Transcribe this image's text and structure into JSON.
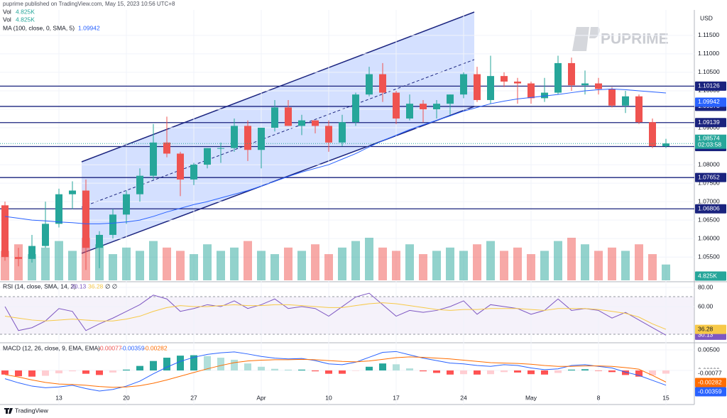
{
  "header": "puprime published on TradingView.com, May 15, 2023 10:56 UTC+8",
  "watermark": "PUPRIME",
  "footer": "TradingView",
  "chart_data": [
    {
      "type": "candlestick",
      "axis_label": "USD",
      "categories": [
        "",
        "",
        "",
        "",
        "13",
        "",
        "",
        "",
        "",
        "20",
        "",
        "",
        "",
        "",
        "27",
        "",
        "",
        "",
        "",
        "Apr",
        "",
        "",
        "",
        "",
        "10",
        "",
        "",
        "",
        "",
        "17",
        "",
        "",
        "",
        "",
        "24",
        "",
        "",
        "",
        "",
        "May",
        "",
        "",
        "",
        "",
        "8",
        "",
        "",
        "",
        "",
        "15"
      ],
      "ohlc": [
        [
          1.069,
          1.07,
          1.054,
          1.055
        ],
        [
          1.055,
          1.0575,
          1.0525,
          1.0545
        ],
        [
          1.0545,
          1.061,
          1.0535,
          1.058
        ],
        [
          1.058,
          1.07,
          1.0575,
          1.064
        ],
        [
          1.064,
          1.0735,
          1.063,
          1.072
        ],
        [
          1.072,
          1.0755,
          1.068,
          1.073
        ],
        [
          1.073,
          1.076,
          1.0515,
          1.0575
        ],
        [
          1.0575,
          1.062,
          1.052,
          1.061
        ],
        [
          1.061,
          1.068,
          1.06,
          1.0665
        ],
        [
          1.0665,
          1.073,
          1.064,
          1.072
        ],
        [
          1.072,
          1.079,
          1.07,
          1.077
        ],
        [
          1.077,
          1.091,
          1.076,
          1.086
        ],
        [
          1.086,
          1.093,
          1.082,
          1.083
        ],
        [
          1.083,
          1.0835,
          1.0715,
          1.076
        ],
        [
          1.076,
          1.0805,
          1.0745,
          1.08
        ],
        [
          1.08,
          1.0845,
          1.079,
          1.0845
        ],
        [
          1.0845,
          1.086,
          1.0805,
          1.0845
        ],
        [
          1.0845,
          1.0925,
          1.0835,
          1.0905
        ],
        [
          1.0905,
          1.092,
          1.081,
          1.084
        ],
        [
          1.084,
          1.09,
          1.079,
          1.09
        ],
        [
          1.09,
          1.0975,
          1.089,
          1.0955
        ],
        [
          1.0955,
          1.0975,
          1.0905,
          1.0905
        ],
        [
          1.0905,
          1.0935,
          1.088,
          1.092
        ],
        [
          1.092,
          1.092,
          1.0885,
          1.0905
        ],
        [
          1.0905,
          1.092,
          1.0835,
          1.086
        ],
        [
          1.086,
          1.0935,
          1.085,
          1.0915
        ],
        [
          1.0915,
          1.0995,
          1.0905,
          1.099
        ],
        [
          1.099,
          1.1065,
          1.0985,
          1.1045
        ],
        [
          1.1045,
          1.1075,
          1.097,
          1.0995
        ],
        [
          1.0995,
          1.1,
          1.091,
          1.0925
        ],
        [
          1.0925,
          1.099,
          1.092,
          1.0965
        ],
        [
          1.0965,
          1.0975,
          1.0915,
          1.095
        ],
        [
          1.095,
          1.0975,
          1.0925,
          1.0965
        ],
        [
          1.0965,
          1.099,
          1.0935,
          1.099
        ],
        [
          1.099,
          1.105,
          1.098,
          1.1045
        ],
        [
          1.1045,
          1.1065,
          1.097,
          1.0975
        ],
        [
          1.0975,
          1.1095,
          1.0965,
          1.104
        ],
        [
          1.104,
          1.105,
          1.101,
          1.1025
        ],
        [
          1.1025,
          1.1035,
          1.0965,
          1.102
        ],
        [
          1.102,
          1.1025,
          1.0965,
          1.098
        ],
        [
          1.098,
          1.1035,
          1.097,
          1.0995
        ],
        [
          1.0995,
          1.1095,
          1.099,
          1.1075
        ],
        [
          1.1075,
          1.109,
          1.1,
          1.1015
        ],
        [
          1.1015,
          1.1055,
          1.099,
          1.102
        ],
        [
          1.102,
          1.1035,
          1.099,
          1.1005
        ],
        [
          1.1005,
          1.101,
          1.0955,
          1.096
        ],
        [
          1.096,
          1.1,
          1.094,
          1.0985
        ],
        [
          1.0985,
          1.099,
          1.091,
          1.0915
        ],
        [
          1.0915,
          1.0925,
          1.0845,
          1.085
        ],
        [
          1.085,
          1.087,
          1.0845,
          1.08574
        ]
      ],
      "up_color": "#26a69a",
      "down_color": "#ef5350",
      "volume": {
        "label": "Vol",
        "values": [
          9,
          11,
          8,
          10,
          12,
          9,
          13,
          11,
          8,
          10,
          9,
          12,
          10,
          9,
          8,
          11,
          9,
          10,
          12,
          9,
          8,
          10,
          9,
          11,
          8,
          10,
          12,
          13,
          10,
          9,
          11,
          8,
          9,
          10,
          9,
          11,
          12,
          9,
          10,
          8,
          9,
          12,
          13,
          11,
          9,
          10,
          9,
          11,
          8,
          4.825
        ],
        "value_label": "4.825K"
      },
      "ma": {
        "name": "MA (100, close, 0, SMA, 5)",
        "color": "#2962ff",
        "values": [
          1.066,
          1.0655,
          1.065,
          1.0648,
          1.0645,
          1.0643,
          1.064,
          1.064,
          1.0642,
          1.0645,
          1.065,
          1.066,
          1.0672,
          1.0682,
          1.0692,
          1.07,
          1.071,
          1.072,
          1.073,
          1.0742,
          1.0755,
          1.0768,
          1.078,
          1.079,
          1.08,
          1.0815,
          1.083,
          1.0848,
          1.0865,
          1.088,
          1.0895,
          1.0908,
          1.092,
          1.0932,
          1.0945,
          1.0955,
          1.0965,
          1.0972,
          1.0978,
          1.0982,
          1.0986,
          1.099,
          1.0995,
          1.1,
          1.1003,
          1.1005,
          1.1003,
          1.1,
          1.0997,
          1.09942
        ]
      },
      "levels": [
        1.10126,
        1.09578,
        1.09139,
        1.08491,
        1.07652,
        1.06806
      ],
      "level_color": "#1a237e",
      "countdown": "02:03:58",
      "ylim": [
        1.0487,
        1.1217
      ],
      "yticks": [
        {
          "value": 1.115,
          "label": "1.11500"
        },
        {
          "value": 1.11,
          "label": "1.11000"
        },
        {
          "value": 1.105,
          "label": "1.10500"
        },
        {
          "value": 1.1,
          "label": "1.10000"
        },
        {
          "value": 1.095,
          "label": "1.09500"
        },
        {
          "value": 1.09,
          "label": "1.09000"
        },
        {
          "value": 1.085,
          "label": "1.08500"
        },
        {
          "value": 1.08,
          "label": "1.08000"
        },
        {
          "value": 1.075,
          "label": "1.07500"
        },
        {
          "value": 1.07,
          "label": "1.07000"
        },
        {
          "value": 1.065,
          "label": "1.06500"
        },
        {
          "value": 1.06,
          "label": "1.06000"
        },
        {
          "value": 1.055,
          "label": "1.05500"
        }
      ]
    },
    {
      "type": "line",
      "name": "RSI (14, close, SMA, 14, 2)",
      "legend_suffix": "∅ ∅",
      "series": [
        {
          "color": "#7e57c2",
          "values": [
            60,
            35,
            38,
            45,
            58,
            55,
            35,
            42,
            48,
            55,
            62,
            72,
            68,
            55,
            58,
            62,
            60,
            66,
            58,
            62,
            68,
            58,
            60,
            58,
            50,
            60,
            70,
            74,
            62,
            50,
            56,
            54,
            56,
            60,
            66,
            52,
            62,
            60,
            58,
            52,
            56,
            68,
            56,
            58,
            56,
            48,
            54,
            46,
            38,
            30.13
          ]
        },
        {
          "color": "#f7c948",
          "values": [
            50,
            48,
            46,
            45,
            46,
            47,
            46,
            45,
            45,
            47,
            50,
            55,
            59,
            61,
            60,
            60,
            61,
            62,
            61,
            61,
            62,
            62,
            61,
            60,
            59,
            59,
            61,
            63,
            64,
            63,
            61,
            59,
            57,
            56,
            57,
            57,
            58,
            58,
            58,
            57,
            56,
            58,
            58,
            58,
            57,
            55,
            53,
            49,
            42,
            36.28
          ]
        }
      ],
      "ylim": [
        23,
        85.2
      ],
      "yticks": [
        {
          "value": 80,
          "label": "80.00"
        },
        {
          "value": 60,
          "label": "60.00"
        }
      ]
    },
    {
      "type": "macd",
      "name": "MACD (12, 26, close, 9, EMA, EMA)",
      "histogram": [
        -0.001,
        -0.0014,
        -0.0015,
        -0.0013,
        -0.0007,
        -0.0002,
        -0.0008,
        -0.0011,
        -0.0005,
        0.0002,
        0.0011,
        0.0023,
        0.0031,
        0.0036,
        0.0037,
        0.0035,
        0.0031,
        0.0026,
        0.0017,
        0.0009,
        0.0004,
        0.0002,
        0.0002,
        -0.0002,
        -0.0008,
        -0.0008,
        -0.0001,
        0.0009,
        0.0017,
        0.0015,
        0.0005,
        -0.0002,
        -0.0006,
        -0.001,
        -0.0009,
        -0.001,
        -0.0009,
        -0.0004,
        -0.0005,
        -0.0009,
        -0.001,
        -0.0006,
        0.0002,
        0.0003,
        -0.0001,
        -0.0004,
        -0.0011,
        -0.0015,
        -0.0012,
        -0.00077
      ],
      "series": [
        {
          "color": "#2962ff",
          "values": [
            -0.002,
            -0.003,
            -0.0038,
            -0.0042,
            -0.004,
            -0.0036,
            -0.0044,
            -0.005,
            -0.0046,
            -0.0038,
            -0.0026,
            -0.0008,
            0.0008,
            0.0022,
            0.0032,
            0.0039,
            0.0043,
            0.0045,
            0.004,
            0.0034,
            0.003,
            0.0028,
            0.0029,
            0.0024,
            0.0016,
            0.0014,
            0.002,
            0.0032,
            0.0044,
            0.0046,
            0.0038,
            0.003,
            0.0024,
            0.0018,
            0.0016,
            0.0012,
            0.001,
            0.0014,
            0.0012,
            0.0006,
            0.0002,
            0.0004,
            0.0012,
            0.0014,
            0.001,
            0.0006,
            -0.0004,
            -0.0012,
            -0.0024,
            -0.00359
          ]
        },
        {
          "color": "#ff6d00",
          "values": [
            -0.001,
            -0.0016,
            -0.0023,
            -0.0029,
            -0.0033,
            -0.0034,
            -0.0036,
            -0.0039,
            -0.0041,
            -0.004,
            -0.0037,
            -0.0031,
            -0.0023,
            -0.0014,
            -0.0005,
            0.0004,
            0.0012,
            0.0019,
            0.0023,
            0.0025,
            0.0026,
            0.0026,
            0.0027,
            0.0026,
            0.0024,
            0.0022,
            0.0021,
            0.0023,
            0.0027,
            0.0031,
            0.0033,
            0.0032,
            0.003,
            0.0028,
            0.0025,
            0.0022,
            0.0019,
            0.0018,
            0.0017,
            0.0015,
            0.0012,
            0.001,
            0.001,
            0.0011,
            0.0011,
            0.001,
            0.0007,
            0.0003,
            -0.0012,
            -0.00282
          ]
        }
      ],
      "ylim": [
        -0.00741,
        0.00638
      ],
      "yticks": [
        {
          "value": 0.005,
          "label": "0.00500"
        },
        {
          "value": 0,
          "label": "0.00000"
        }
      ]
    }
  ]
}
